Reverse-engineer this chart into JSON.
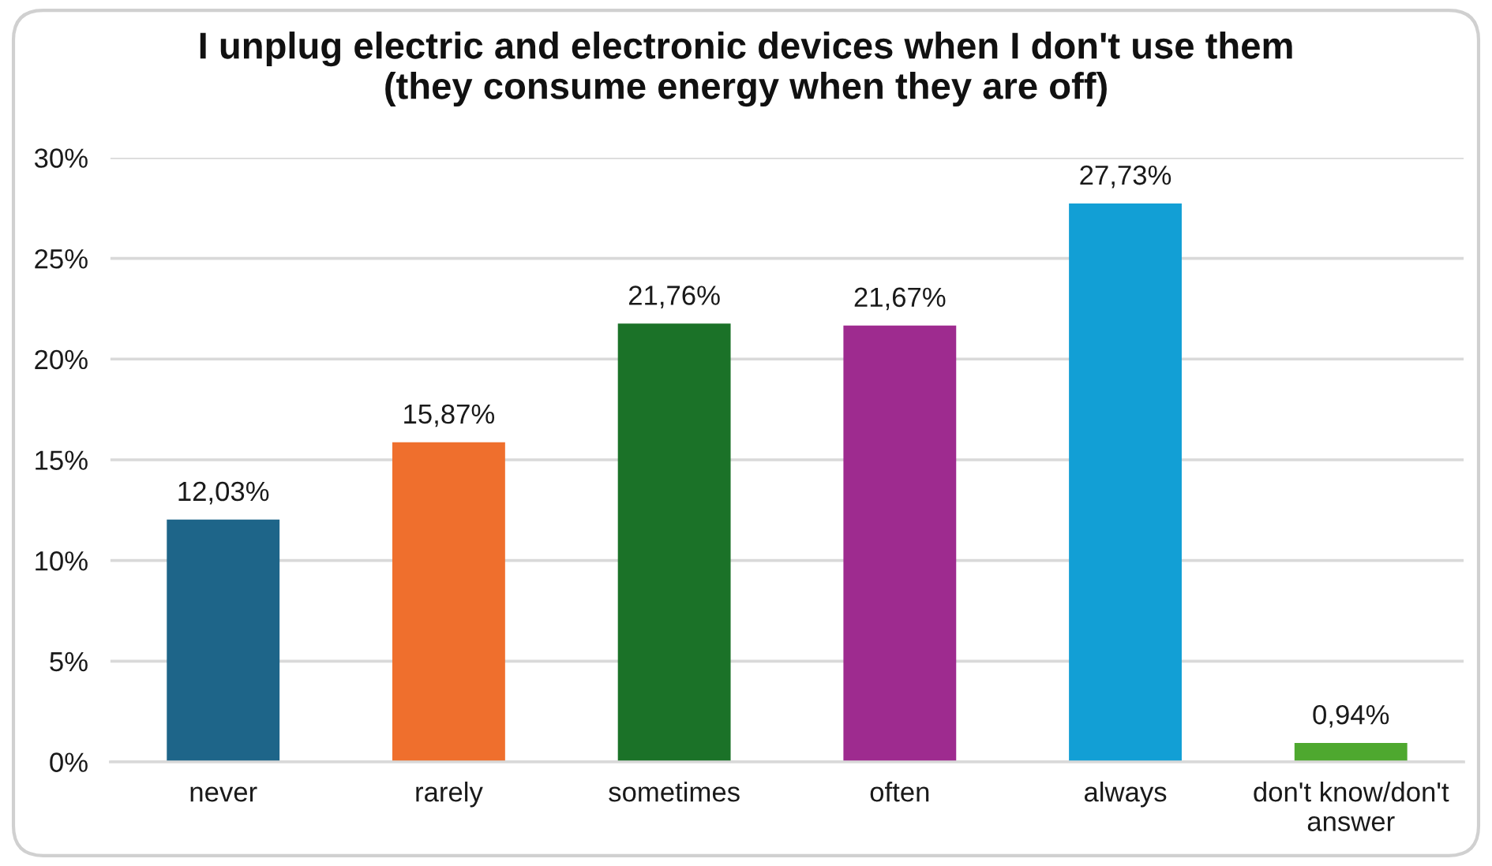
{
  "chart_data": {
    "type": "bar",
    "title": "I unplug electric and electronic devices when I don't use them\n(they consume energy when they are off)",
    "categories": [
      "never",
      "rarely",
      "sometimes",
      "often",
      "always",
      "don't know/don't\nanswer"
    ],
    "values": [
      12.03,
      15.87,
      21.76,
      21.67,
      27.73,
      0.94
    ],
    "colors": [
      "#1e6589",
      "#ef6f2d",
      "#1b7228",
      "#9e2b8f",
      "#129fd5",
      "#4ea82f"
    ],
    "value_labels": [
      "12,03%",
      "15,87%",
      "21,76%",
      "21,67%",
      "27,73%",
      "0,94%"
    ],
    "ylim": [
      0,
      30
    ],
    "yticks": [
      {
        "value": 0,
        "label": "0%"
      },
      {
        "value": 5,
        "label": "5%"
      },
      {
        "value": 10,
        "label": "10%"
      },
      {
        "value": 15,
        "label": "15%"
      },
      {
        "value": 20,
        "label": "20%"
      },
      {
        "value": 25,
        "label": "25%"
      },
      {
        "value": 30,
        "label": "30%"
      }
    ],
    "grid": "y"
  }
}
